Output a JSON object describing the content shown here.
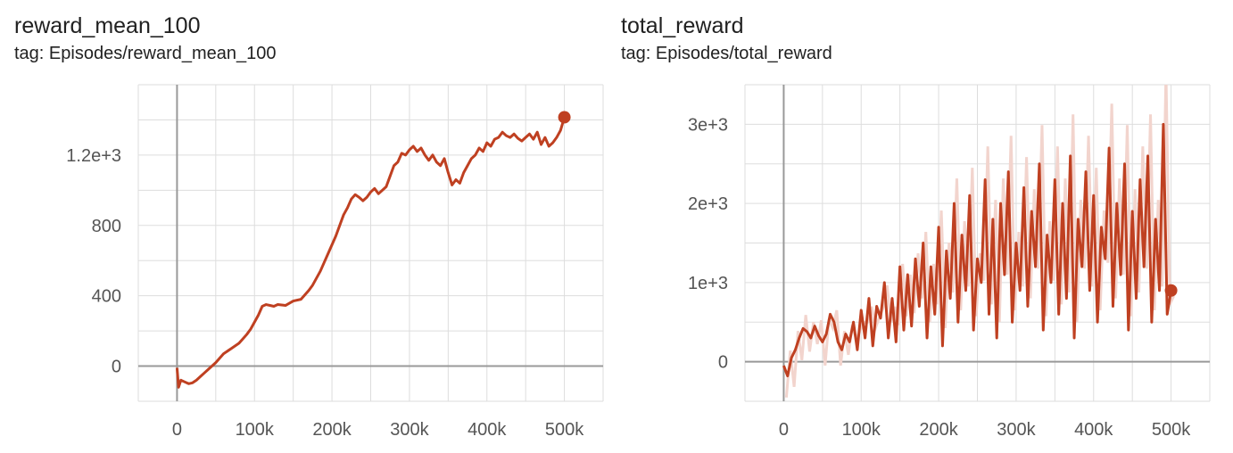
{
  "colors": {
    "series": "#bf4021",
    "raw": "#f2d4cd",
    "grid": "#dddddd",
    "axis": "#999999",
    "tick_text": "#555555"
  },
  "charts": [
    {
      "title": "reward_mean_100",
      "tag": "tag: Episodes/reward_mean_100"
    },
    {
      "title": "total_reward",
      "tag": "tag: Episodes/total_reward"
    }
  ],
  "chart_data": [
    {
      "type": "line",
      "title": "reward_mean_100",
      "subtitle": "tag: Episodes/reward_mean_100",
      "xlim": [
        -50000,
        550000
      ],
      "ylim": [
        -200,
        1600
      ],
      "grid": true,
      "x_ticks": [
        0,
        100000,
        200000,
        300000,
        400000,
        500000
      ],
      "x_tick_labels": [
        "0",
        "100k",
        "200k",
        "300k",
        "400k",
        "500k"
      ],
      "y_ticks": [
        0,
        400,
        800,
        1200
      ],
      "y_tick_labels": [
        "0",
        "400",
        "800",
        "1.2e+3"
      ],
      "series": [
        {
          "x": [
            0,
            2000,
            5000,
            10000,
            15000,
            20000,
            25000,
            30000,
            35000,
            40000,
            50000,
            60000,
            70000,
            80000,
            90000,
            95000,
            100000,
            105000,
            110000,
            115000,
            120000,
            125000,
            130000,
            140000,
            150000,
            160000,
            170000,
            175000,
            180000,
            185000,
            190000,
            195000,
            200000,
            205000,
            210000,
            215000,
            220000,
            225000,
            230000,
            235000,
            240000,
            245000,
            250000,
            255000,
            260000,
            265000,
            270000,
            275000,
            280000,
            285000,
            290000,
            295000,
            300000,
            305000,
            310000,
            315000,
            320000,
            325000,
            330000,
            335000,
            340000,
            345000,
            350000,
            355000,
            360000,
            365000,
            370000,
            375000,
            380000,
            385000,
            390000,
            395000,
            400000,
            405000,
            410000,
            415000,
            420000,
            425000,
            430000,
            435000,
            440000,
            445000,
            450000,
            455000,
            460000,
            465000,
            470000,
            475000,
            480000,
            485000,
            490000,
            495000,
            500000
          ],
          "y": [
            -10,
            -120,
            -80,
            -90,
            -100,
            -95,
            -80,
            -60,
            -40,
            -20,
            20,
            70,
            100,
            130,
            180,
            210,
            250,
            290,
            340,
            350,
            345,
            340,
            350,
            345,
            370,
            380,
            430,
            460,
            500,
            540,
            590,
            640,
            690,
            740,
            800,
            860,
            900,
            950,
            975,
            960,
            940,
            960,
            990,
            1010,
            980,
            1000,
            1020,
            1080,
            1140,
            1160,
            1210,
            1200,
            1230,
            1250,
            1220,
            1240,
            1200,
            1170,
            1200,
            1160,
            1140,
            1180,
            1100,
            1030,
            1060,
            1040,
            1100,
            1140,
            1180,
            1200,
            1240,
            1220,
            1270,
            1250,
            1290,
            1300,
            1330,
            1310,
            1300,
            1320,
            1295,
            1280,
            1300,
            1320,
            1290,
            1330,
            1260,
            1300,
            1250,
            1270,
            1300,
            1340,
            1415
          ]
        }
      ]
    },
    {
      "type": "line",
      "title": "total_reward",
      "subtitle": "tag: Episodes/total_reward",
      "xlim": [
        -50000,
        550000
      ],
      "ylim": [
        -500,
        3500
      ],
      "grid": true,
      "x_ticks": [
        0,
        100000,
        200000,
        300000,
        400000,
        500000
      ],
      "x_tick_labels": [
        "0",
        "100k",
        "200k",
        "300k",
        "400k",
        "500k"
      ],
      "y_ticks": [
        0,
        1000,
        2000,
        3000
      ],
      "y_tick_labels": [
        "0",
        "1e+3",
        "2e+3",
        "3e+3"
      ],
      "series": [
        {
          "x": [
            0,
            5000,
            10000,
            15000,
            20000,
            25000,
            30000,
            35000,
            40000,
            45000,
            50000,
            55000,
            60000,
            65000,
            70000,
            75000,
            80000,
            85000,
            90000,
            95000,
            100000,
            105000,
            110000,
            115000,
            120000,
            125000,
            130000,
            135000,
            140000,
            145000,
            150000,
            155000,
            160000,
            165000,
            170000,
            175000,
            180000,
            185000,
            190000,
            195000,
            200000,
            205000,
            210000,
            215000,
            220000,
            225000,
            230000,
            235000,
            240000,
            245000,
            250000,
            255000,
            260000,
            265000,
            270000,
            275000,
            280000,
            285000,
            290000,
            295000,
            300000,
            305000,
            310000,
            315000,
            320000,
            325000,
            330000,
            335000,
            340000,
            345000,
            350000,
            355000,
            360000,
            365000,
            370000,
            375000,
            380000,
            385000,
            390000,
            395000,
            400000,
            405000,
            410000,
            415000,
            420000,
            425000,
            430000,
            435000,
            440000,
            445000,
            450000,
            455000,
            460000,
            465000,
            470000,
            475000,
            480000,
            485000,
            490000,
            495000,
            500000
          ],
          "y": [
            -50,
            -180,
            50,
            150,
            300,
            420,
            380,
            300,
            450,
            330,
            250,
            350,
            600,
            500,
            250,
            150,
            350,
            250,
            500,
            150,
            650,
            300,
            800,
            200,
            700,
            550,
            1000,
            300,
            800,
            250,
            1200,
            400,
            1100,
            450,
            1300,
            700,
            1500,
            300,
            1200,
            600,
            1700,
            200,
            1400,
            800,
            2000,
            500,
            1600,
            900,
            2100,
            400,
            1300,
            1000,
            2300,
            600,
            1800,
            300,
            2000,
            1100,
            2400,
            500,
            1500,
            900,
            2200,
            700,
            1900,
            1200,
            2500,
            400,
            1600,
            1000,
            2300,
            600,
            2000,
            800,
            2600,
            300,
            1800,
            1200,
            2400,
            900,
            2100,
            500,
            1700,
            1300,
            2700,
            700,
            2000,
            1100,
            2500,
            400,
            1900,
            800,
            2300,
            1200,
            2600,
            500,
            1800,
            900,
            3000,
            600,
            900
          ]
        }
      ]
    }
  ]
}
